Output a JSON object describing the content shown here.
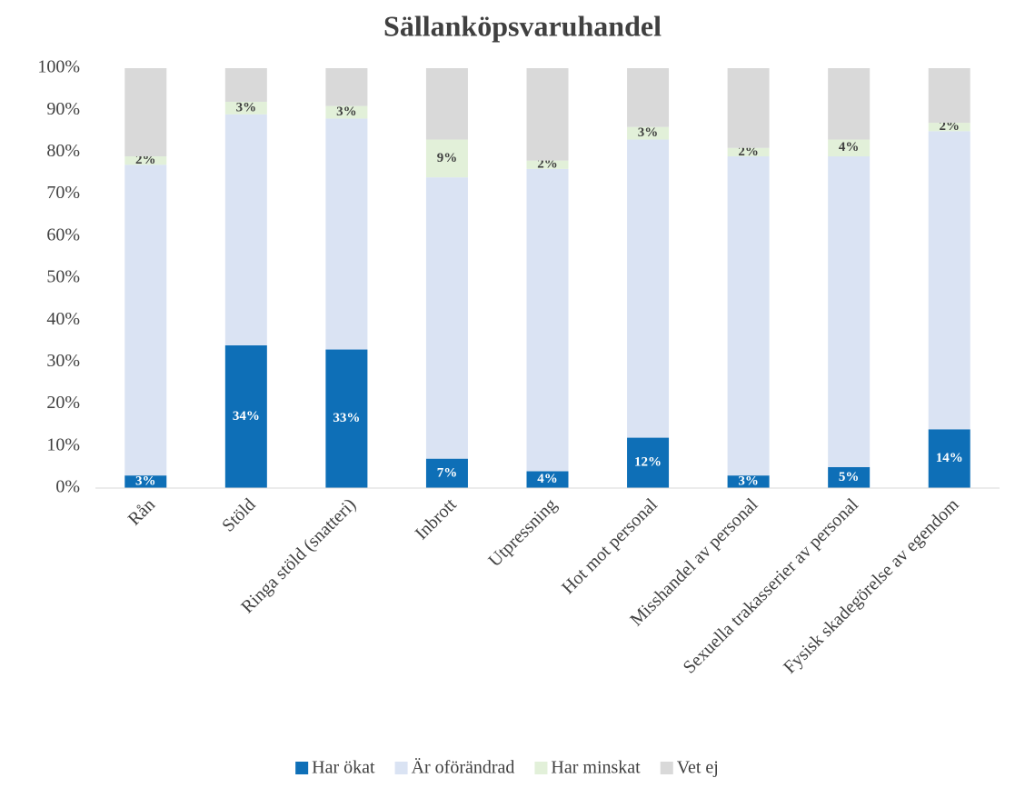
{
  "chart_data": {
    "type": "stacked_bar",
    "title": "Sällanköpsvaruhandel",
    "categories": [
      "Rån",
      "Stöld",
      "Ringa stöld (snatteri)",
      "Inbrott",
      "Utpressning",
      "Hot mot personal",
      "Misshandel av personal",
      "Sexuella trakasserier av personal",
      "Fysisk skadegörelse av egendom"
    ],
    "series": [
      {
        "name": "Har ökat",
        "color": "#0e6fb7",
        "values": [
          3,
          34,
          33,
          7,
          4,
          12,
          3,
          5,
          14
        ],
        "value_labels": [
          "3%",
          "34%",
          "33%",
          "7%",
          "4%",
          "12%",
          "3%",
          "5%",
          "14%"
        ]
      },
      {
        "name": "Är oförändrad",
        "color": "#dae3f3",
        "values": [
          74,
          55,
          55,
          67,
          72,
          71,
          76,
          74,
          71
        ]
      },
      {
        "name": "Har minskat",
        "color": "#e2f0d9",
        "values": [
          2,
          3,
          3,
          9,
          2,
          3,
          2,
          4,
          2
        ],
        "value_labels": [
          "2%",
          "3%",
          "3%",
          "9%",
          "2%",
          "3%",
          "2%",
          "4%",
          "2%"
        ]
      },
      {
        "name": "Vet ej",
        "color": "#d9d9d9",
        "values": [
          21,
          8,
          9,
          17,
          22,
          14,
          19,
          17,
          13
        ]
      }
    ],
    "ylim": [
      0,
      100
    ],
    "yticks": [
      {
        "value": 0,
        "label": "0%"
      },
      {
        "value": 10,
        "label": "10%"
      },
      {
        "value": 20,
        "label": "20%"
      },
      {
        "value": 30,
        "label": "30%"
      },
      {
        "value": 40,
        "label": "40%"
      },
      {
        "value": 50,
        "label": "50%"
      },
      {
        "value": 60,
        "label": "60%"
      },
      {
        "value": 70,
        "label": "70%"
      },
      {
        "value": 80,
        "label": "80%"
      },
      {
        "value": 90,
        "label": "90%"
      },
      {
        "value": 100,
        "label": "100%"
      }
    ],
    "legend": "bottom"
  }
}
